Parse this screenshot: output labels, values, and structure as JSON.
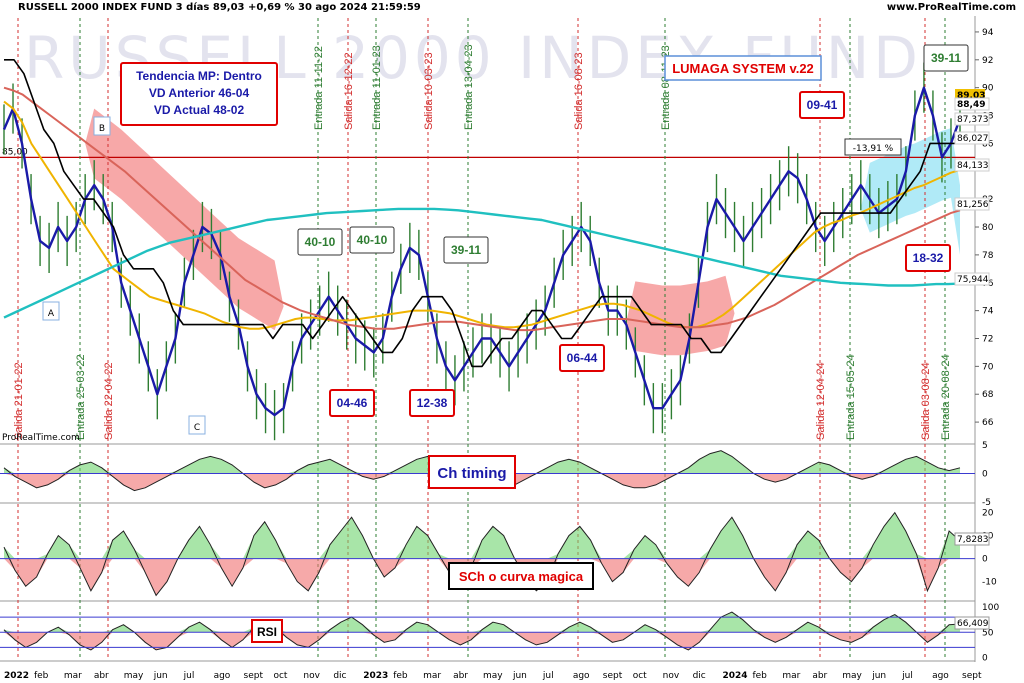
{
  "header": {
    "title": "RUSSELL 2000 INDEX FUND 3 días 89,03 +0,69 % 30 ago 2024 21:59:59",
    "site": "www.ProRealTime.com"
  },
  "watermark": "RUSSELL 2000 INDEX FUND",
  "brand": "ProRealTime.com",
  "colors": {
    "price": "#1a1aa8",
    "bars": "#2e7d32",
    "ma_short": "#f0b400",
    "ma_mid": "#d9645a",
    "ma_long": "#20c0c0",
    "black_line": "#000000",
    "signal_exit": "#d32f2f",
    "signal_entry": "#2e7d32",
    "hline": "#c00000"
  },
  "info_box": {
    "line1": "Tendencia MP: Dentro",
    "line2": "VD Anterior 46-04",
    "line3": "VD Actual 48-02"
  },
  "system_label": "LUMAGA SYSTEM v.22",
  "chart_data": [
    {
      "type": "line",
      "title": "",
      "pane": "price",
      "ylim": [
        64.5,
        95
      ],
      "y_ticks": [
        66,
        68,
        70,
        72,
        74,
        76,
        78,
        80,
        82,
        86,
        88,
        90,
        92,
        94
      ],
      "x_labels": [
        "2022",
        "feb",
        "mar",
        "abr",
        "may",
        "jun",
        "jul",
        "ago",
        "sept",
        "oct",
        "nov",
        "dic",
        "2023",
        "feb",
        "mar",
        "abr",
        "may",
        "jun",
        "jul",
        "ago",
        "sept",
        "oct",
        "nov",
        "dic",
        "2024",
        "feb",
        "mar",
        "abr",
        "may",
        "jun",
        "jul",
        "ago",
        "sept"
      ],
      "horizontal_line": 85.0,
      "horizontal_line_label": "85,00",
      "series": [
        {
          "name": "",
          "role": "price",
          "values": [
            87,
            88.5,
            86,
            82,
            79,
            78.5,
            80,
            79,
            80,
            82,
            83,
            82,
            80,
            76,
            74,
            72,
            70,
            68,
            70,
            72,
            76,
            78,
            80,
            79.5,
            78,
            75,
            73,
            70,
            68,
            67,
            66.5,
            67,
            70,
            72,
            73,
            74,
            75,
            74,
            73,
            72,
            71.5,
            71,
            72,
            75,
            77,
            78.5,
            78,
            75,
            72,
            70,
            69,
            70,
            71,
            72,
            72,
            71,
            70,
            71,
            72,
            73,
            74,
            76,
            78,
            79,
            80,
            79,
            76,
            74,
            74,
            73,
            71,
            69,
            67,
            67,
            68,
            69,
            72,
            76,
            80,
            82,
            81,
            80,
            79,
            80,
            81,
            82,
            83,
            84,
            83.5,
            82,
            80,
            79,
            80,
            81,
            82,
            83,
            82,
            81,
            81.5,
            82,
            84,
            88,
            90,
            88,
            85,
            86,
            87.8
          ]
        },
        {
          "name": "",
          "role": "ma_short",
          "values": [
            89,
            88.5,
            87.5,
            86,
            85,
            84,
            83,
            82,
            81,
            80,
            79,
            78,
            77,
            76.5,
            76,
            75.5,
            75,
            74.8,
            74.6,
            74.4,
            74.2,
            74,
            73.8,
            73.5,
            73.2,
            73,
            72.8,
            72.7,
            72.7,
            72.8,
            73,
            73.2,
            73.4,
            73.5,
            73.5,
            73.4,
            73.3,
            73.3,
            73.3,
            73.4,
            73.5,
            73.6,
            73.7,
            73.8,
            73.9,
            74,
            74,
            74,
            73.9,
            73.8,
            73.6,
            73.4,
            73.2,
            73,
            72.9,
            72.8,
            72.8,
            72.9,
            73,
            73.2,
            73.4,
            73.6,
            73.8,
            74,
            74.2,
            74.4,
            74.5,
            74.5,
            74.4,
            74.2,
            74,
            73.7,
            73.4,
            73.1,
            72.9,
            72.8,
            72.8,
            73,
            73.3,
            73.7,
            74.2,
            74.8,
            75.4,
            76,
            76.6,
            77.2,
            77.8,
            78.4,
            79,
            79.6,
            80,
            80.3,
            80.5,
            80.8,
            81,
            81.3,
            81.6,
            81.9,
            82.2,
            82.5,
            82.8,
            83,
            83.3,
            83.6,
            83.9,
            84.1
          ]
        },
        {
          "name": "",
          "role": "ma_mid",
          "values": [
            90,
            89.8,
            89.5,
            89,
            88.5,
            88,
            87.5,
            87,
            86.5,
            86,
            85.5,
            85,
            84.5,
            84,
            83.4,
            82.8,
            82.2,
            81.6,
            81,
            80.4,
            79.8,
            79.2,
            78.6,
            78,
            77.4,
            76.8,
            76.2,
            75.8,
            75.4,
            75,
            74.6,
            74.3,
            74,
            73.8,
            73.6,
            73.4,
            73.2,
            73,
            72.9,
            72.8,
            72.7,
            72.7,
            72.7,
            72.8,
            72.9,
            73,
            73.1,
            73.2,
            73.2,
            73.2,
            73.1,
            73,
            72.9,
            72.8,
            72.7,
            72.6,
            72.6,
            72.6,
            72.7,
            72.8,
            72.9,
            73,
            73.1,
            73.2,
            73.3,
            73.4,
            73.4,
            73.4,
            73.3,
            73.2,
            73.1,
            73,
            72.9,
            72.8,
            72.8,
            72.8,
            72.9,
            73,
            73.1,
            73.3,
            73.5,
            73.8,
            74.1,
            74.4,
            74.8,
            75.2,
            75.6,
            76,
            76.4,
            76.8,
            77.2,
            77.6,
            78,
            78.3,
            78.6,
            78.9,
            79.2,
            79.5,
            79.8,
            80.1,
            80.4,
            80.7,
            81,
            81.2
          ]
        },
        {
          "name": "",
          "role": "ma_long",
          "values": [
            73.5,
            73.9,
            74.3,
            74.7,
            75.1,
            75.5,
            75.9,
            76.3,
            76.7,
            77.1,
            77.5,
            77.9,
            78.3,
            78.6,
            78.9,
            79.1,
            79.3,
            79.5,
            79.7,
            79.9,
            80.1,
            80.3,
            80.5,
            80.6,
            80.7,
            80.8,
            80.9,
            81,
            81.05,
            81.1,
            81.15,
            81.2,
            81.25,
            81.3,
            81.3,
            81.3,
            81.3,
            81.25,
            81.2,
            81.1,
            81,
            80.9,
            80.8,
            80.7,
            80.6,
            80.5,
            80.3,
            80.1,
            79.9,
            79.7,
            79.5,
            79.3,
            79.1,
            78.9,
            78.7,
            78.5,
            78.3,
            78.1,
            77.9,
            77.7,
            77.5,
            77.3,
            77.1,
            76.9,
            76.7,
            76.5,
            76.4,
            76.3,
            76.2,
            76.1,
            76,
            75.95,
            75.9,
            75.85,
            75.8,
            75.8,
            75.8,
            75.85,
            75.9,
            75.9,
            75.94
          ]
        },
        {
          "name": "",
          "role": "black_line",
          "values": [
            92,
            92,
            91,
            89,
            87,
            86,
            84,
            83,
            82,
            82,
            81,
            80,
            78,
            77,
            77,
            77,
            76,
            74,
            73,
            73,
            73,
            73,
            73,
            73,
            73,
            73,
            73,
            72,
            73,
            73,
            73,
            72,
            73,
            74,
            75,
            74,
            73,
            72,
            71,
            71,
            72,
            74,
            75,
            75,
            75,
            74,
            72,
            70,
            70,
            71,
            72,
            72,
            73,
            74,
            74,
            73,
            72,
            72,
            73,
            74,
            75,
            75,
            75,
            75,
            74,
            73,
            73,
            73,
            73,
            72,
            72,
            71,
            71,
            72,
            73,
            74,
            75,
            76,
            77,
            78,
            79,
            80,
            81,
            81,
            81,
            81,
            81,
            81,
            81,
            81,
            82,
            83,
            84,
            86,
            86,
            86,
            86
          ]
        }
      ],
      "annotations": {
        "current_price": "89,03",
        "right_labels": [
          "88,49",
          "87,373",
          "86,027",
          "84,133",
          "81,256",
          "75,944"
        ],
        "pct_box": "-13,91 %",
        "letters": [
          "A",
          "B",
          "C"
        ],
        "signal_boxes": [
          "40-10",
          "40-10",
          "39-11",
          "39-11",
          "04-46",
          "12-38",
          "06-44",
          "09-41",
          "18-32"
        ],
        "signals": [
          {
            "label": "Salida 21-01-22",
            "kind": "exit"
          },
          {
            "label": "Entrada 25-03-22",
            "kind": "entry"
          },
          {
            "label": "Salida 22-04-22",
            "kind": "exit"
          },
          {
            "label": "Entrada 11-11-22",
            "kind": "entry"
          },
          {
            "label": "Salida 16-12-22",
            "kind": "exit"
          },
          {
            "label": "Entrada 11-01-23",
            "kind": "entry"
          },
          {
            "label": "Salida 10-03-23",
            "kind": "exit"
          },
          {
            "label": "Entrada 13-04-23",
            "kind": "entry"
          },
          {
            "label": "Salida 16-08-23",
            "kind": "exit"
          },
          {
            "label": "Entrada 08-11-23",
            "kind": "entry"
          },
          {
            "label": "Salida 12-04-24",
            "kind": "exit"
          },
          {
            "label": "Entrada 15-05-24",
            "kind": "entry"
          },
          {
            "label": "Salida 03-08-24",
            "kind": "exit"
          },
          {
            "label": "Entrada 20-08-24",
            "kind": "entry"
          }
        ]
      }
    },
    {
      "type": "area",
      "pane": "ch_timing",
      "title": "Ch timing",
      "ylim": [
        -5,
        5
      ],
      "y_ticks": [
        5,
        0,
        -5
      ],
      "values": [
        1,
        -0.5,
        -1.5,
        -2.5,
        -2,
        -1,
        0.5,
        1.5,
        2,
        1,
        -0.5,
        -2,
        -3,
        -2.5,
        -1.5,
        -0.5,
        0.5,
        1.5,
        2.5,
        3,
        2.5,
        1.5,
        0,
        -1.5,
        -2.5,
        -2,
        -1,
        0.5,
        1.5,
        2,
        2.5,
        1.5,
        0.5,
        -0.5,
        -1,
        -0.5,
        0.5,
        1.5,
        2.5,
        3,
        2.5,
        2,
        1,
        0,
        -1,
        -2,
        -2.5,
        -2,
        -1,
        0,
        1,
        2,
        2.5,
        2,
        1,
        0,
        -1,
        -2,
        -2.5,
        -2.5,
        -2,
        -1,
        0,
        1,
        2.5,
        3.5,
        4,
        3,
        1.5,
        0,
        -1,
        -1.5,
        -1,
        0,
        1,
        2,
        1.5,
        0.5,
        -0.5,
        -1,
        -0.5,
        0.5,
        1.5,
        2.5,
        3,
        2,
        1,
        0.5,
        1
      ]
    },
    {
      "type": "area",
      "pane": "sch",
      "title": "SCh o curva magica",
      "ylim": [
        -18,
        22
      ],
      "y_ticks": [
        20,
        10,
        0,
        -10
      ],
      "last_value": "7,8283",
      "values": [
        5,
        -5,
        -12,
        -8,
        2,
        10,
        6,
        -4,
        -14,
        -6,
        8,
        12,
        4,
        -6,
        -16,
        -10,
        0,
        8,
        14,
        6,
        -4,
        -12,
        -4,
        10,
        16,
        8,
        -2,
        -10,
        -14,
        -6,
        6,
        12,
        18,
        10,
        0,
        -8,
        -4,
        6,
        14,
        10,
        2,
        -6,
        -12,
        -4,
        8,
        14,
        10,
        0,
        -8,
        -14,
        -10,
        2,
        10,
        14,
        8,
        -2,
        -10,
        -6,
        4,
        10,
        6,
        -2,
        -8,
        -12,
        -6,
        4,
        12,
        18,
        10,
        0,
        -8,
        -14,
        -6,
        6,
        12,
        8,
        0,
        -6,
        -10,
        -4,
        6,
        14,
        20,
        12,
        2,
        -14,
        -4,
        12,
        7.8
      ]
    },
    {
      "type": "line",
      "pane": "rsi",
      "title": "RSI",
      "ylim": [
        -5,
        110
      ],
      "y_ticks": [
        100,
        50,
        0
      ],
      "last_value": "66,409",
      "values": [
        55,
        35,
        20,
        30,
        50,
        60,
        45,
        25,
        15,
        30,
        55,
        65,
        50,
        30,
        15,
        20,
        40,
        60,
        70,
        55,
        35,
        20,
        35,
        60,
        75,
        60,
        40,
        25,
        20,
        35,
        55,
        70,
        80,
        65,
        45,
        30,
        35,
        55,
        70,
        65,
        50,
        35,
        25,
        35,
        55,
        70,
        65,
        50,
        35,
        25,
        30,
        45,
        60,
        70,
        60,
        45,
        30,
        35,
        50,
        65,
        55,
        40,
        25,
        15,
        30,
        55,
        80,
        90,
        75,
        55,
        40,
        30,
        40,
        55,
        70,
        60,
        45,
        35,
        30,
        40,
        60,
        75,
        85,
        70,
        50,
        30,
        45,
        65,
        66.4
      ]
    }
  ]
}
